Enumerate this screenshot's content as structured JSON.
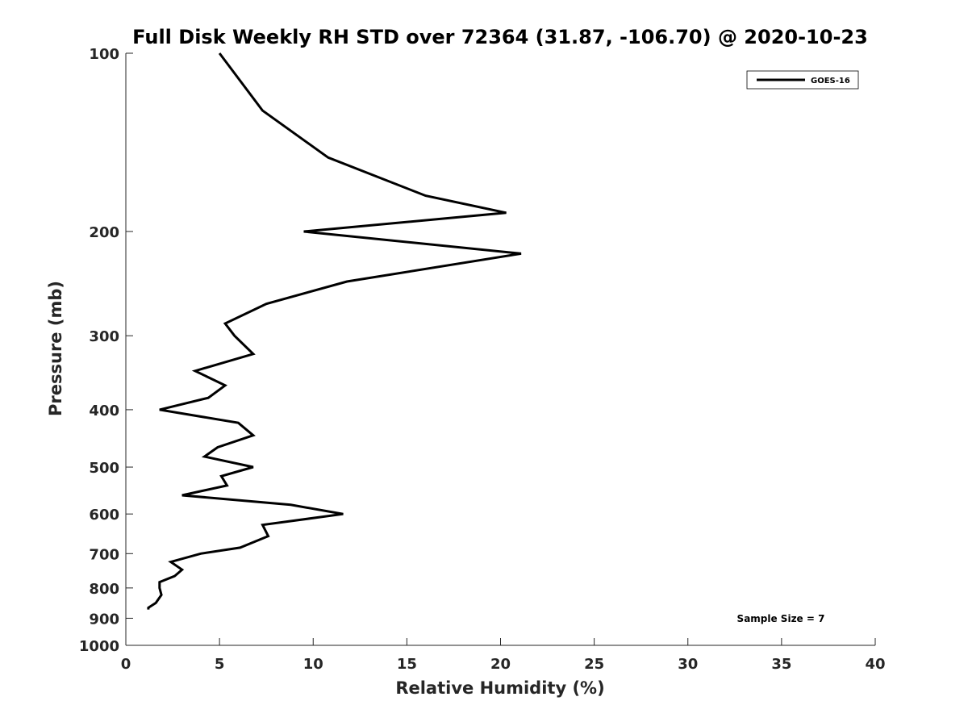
{
  "chart_data": {
    "type": "line",
    "title": "Full Disk Weekly RH STD over 72364 (31.87, -106.70) @ 2020-10-23",
    "xlabel": "Relative Humidity (%)",
    "ylabel": "Pressure (mb)",
    "xlim": [
      0,
      40
    ],
    "ylim": [
      100,
      1000
    ],
    "y_scale": "log",
    "y_reversed": true,
    "x_ticks": [
      0,
      5,
      10,
      15,
      20,
      25,
      30,
      35,
      40
    ],
    "y_ticks": [
      100,
      200,
      300,
      400,
      500,
      600,
      700,
      800,
      900,
      1000
    ],
    "grid": false,
    "legend_position": "top-right",
    "annotation": "Sample Size = 7",
    "series": [
      {
        "name": "GOES-16",
        "color": "#000000",
        "points": [
          [
            5.0,
            100
          ],
          [
            7.3,
            125
          ],
          [
            10.8,
            150
          ],
          [
            16.0,
            174
          ],
          [
            20.3,
            186
          ],
          [
            9.5,
            200
          ],
          [
            21.1,
            218
          ],
          [
            11.8,
            243
          ],
          [
            7.5,
            265
          ],
          [
            5.3,
            286
          ],
          [
            5.8,
            300
          ],
          [
            6.8,
            322
          ],
          [
            3.7,
            344
          ],
          [
            5.3,
            364
          ],
          [
            4.4,
            382
          ],
          [
            1.8,
            400
          ],
          [
            6.0,
            421
          ],
          [
            6.8,
            442
          ],
          [
            4.9,
            463
          ],
          [
            4.2,
            480
          ],
          [
            6.8,
            500
          ],
          [
            5.1,
            518
          ],
          [
            5.4,
            537
          ],
          [
            3.0,
            558
          ],
          [
            8.8,
            579
          ],
          [
            11.6,
            600
          ],
          [
            7.3,
            626
          ],
          [
            7.6,
            654
          ],
          [
            6.1,
            684
          ],
          [
            4.0,
            700
          ],
          [
            2.4,
            723
          ],
          [
            3.0,
            745
          ],
          [
            2.6,
            764
          ],
          [
            1.8,
            782
          ],
          [
            1.8,
            800
          ],
          [
            1.9,
            822
          ],
          [
            1.6,
            848
          ],
          [
            1.2,
            864
          ],
          [
            1.2,
            870
          ]
        ]
      }
    ]
  }
}
